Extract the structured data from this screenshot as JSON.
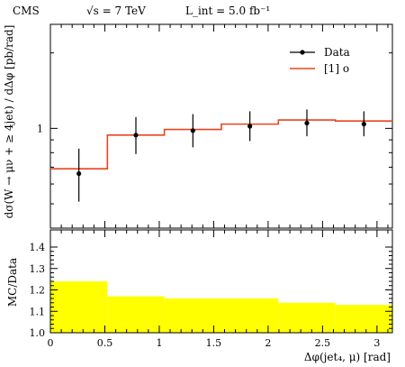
{
  "header": {
    "experiment": "CMS",
    "energy": "√s = 7 TeV",
    "lumi": "L_int = 5.0 fb⁻¹"
  },
  "chart_data": [
    {
      "type": "line",
      "panel": "main",
      "ylabel": "dσ(W → μν + ≥ 4jet) / dΔφ [pb/rad]",
      "yscale": "log",
      "ytick_labels": [
        "1"
      ],
      "xlim": [
        0,
        3.1416
      ],
      "ylim": [
        0.4,
        2.6
      ],
      "bin_edges": [
        0,
        0.5236,
        1.0472,
        1.5708,
        2.0944,
        2.618,
        3.1416
      ],
      "series": [
        {
          "name": "Data",
          "style": "points-with-errors",
          "x": [
            0.2618,
            0.7854,
            1.309,
            1.8326,
            2.3562,
            2.8798
          ],
          "values": [
            0.66,
            0.94,
            0.98,
            1.02,
            1.05,
            1.04
          ],
          "err_low": [
            0.15,
            0.15,
            0.14,
            0.13,
            0.12,
            0.11
          ],
          "err_high": [
            0.17,
            0.17,
            0.16,
            0.15,
            0.14,
            0.13
          ]
        },
        {
          "name": "[1] o",
          "style": "step",
          "values": [
            0.69,
            0.94,
            0.99,
            1.04,
            1.08,
            1.07
          ]
        }
      ],
      "legend": {
        "position": "top-right",
        "entries": [
          "Data",
          "[1] o"
        ]
      },
      "colors": {
        "data": "#000000",
        "mc": "#e8451e"
      }
    },
    {
      "type": "area",
      "panel": "ratio",
      "ylabel": "MC/Data",
      "xlabel": "Δφ(jet₄, μ) [rad]",
      "xlim": [
        0,
        3.1416
      ],
      "ylim": [
        1.0,
        1.48
      ],
      "yticks": [
        "1.0",
        "1.1",
        "1.2",
        "1.3",
        "1.4"
      ],
      "xticks": [
        "0",
        "0.5",
        "1",
        "1.5",
        "2",
        "2.5",
        "3"
      ],
      "bin_edges": [
        0,
        0.5236,
        1.0472,
        1.5708,
        2.0944,
        2.618,
        3.1416
      ],
      "values": [
        1.24,
        1.17,
        1.16,
        1.16,
        1.14,
        1.13
      ],
      "colors": {
        "band": "#ffff00"
      }
    }
  ]
}
